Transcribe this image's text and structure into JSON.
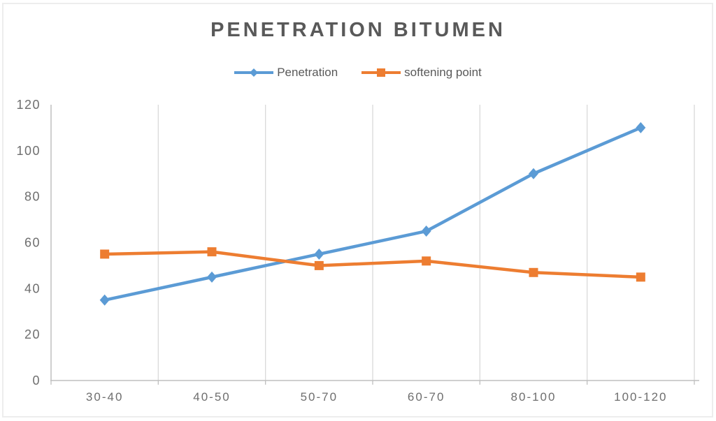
{
  "chart": {
    "title": "PENETRATION BITUMEN"
  },
  "chart_data": {
    "type": "line",
    "title": "PENETRATION BITUMEN",
    "categories": [
      "30-40",
      "40-50",
      "50-70",
      "60-70",
      "80-100",
      "100-120"
    ],
    "series": [
      {
        "name": "Penetration",
        "marker": "diamond",
        "color": "#5B9BD5",
        "values": [
          35,
          45,
          55,
          65,
          90,
          110
        ]
      },
      {
        "name": "softening point",
        "marker": "square",
        "color": "#ED7D31",
        "values": [
          55,
          56,
          50,
          52,
          47,
          45
        ]
      }
    ],
    "xlabel": "",
    "ylabel": "",
    "ylim": [
      0,
      120
    ],
    "y_tick_step": 20,
    "y_ticks": [
      0,
      20,
      40,
      60,
      80,
      100,
      120
    ],
    "grid": "vertical-only",
    "legend_position": "top-center",
    "colors": {
      "title_text": "#595959",
      "legend_text": "#595959",
      "axis_text": "#6e6e6e",
      "gridline": "#d9d9d9",
      "axis_line": "#bfbfbf",
      "canvas_border": "#ededed",
      "background": "#ffffff"
    }
  }
}
